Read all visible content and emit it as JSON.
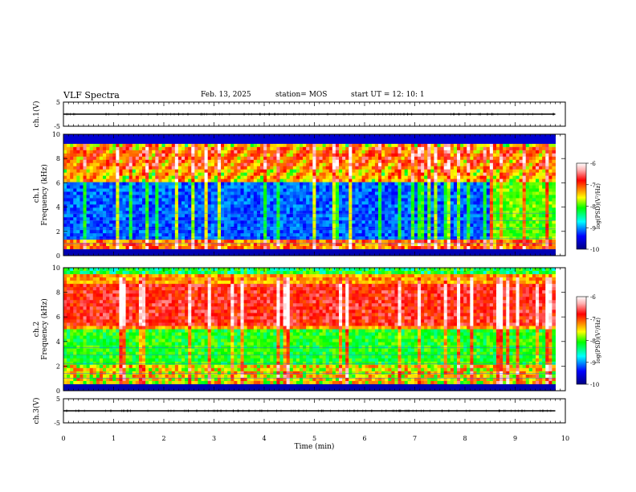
{
  "header": {
    "title": "VLF Spectra",
    "date": "Feb. 13, 2025",
    "station": "station= MOS",
    "start_ut": "start  UT =   12: 10: 1"
  },
  "colors": {
    "background_band": "#000066",
    "colormap": [
      "#000080",
      "#0000ff",
      "#00ffff",
      "#00ff00",
      "#ffff00",
      "#ff8000",
      "#ff0000",
      "#ffb0b0",
      "#ffffff"
    ]
  },
  "chart_data": [
    {
      "type": "line",
      "panel": "ch1-waveform",
      "ylabel": "ch.1(V)",
      "y_ticks": [
        "5",
        "-5"
      ],
      "ylim": [
        -5,
        5
      ],
      "x_ticks": [
        "0",
        "1",
        "2",
        "3",
        "4",
        "5",
        "6",
        "7",
        "8",
        "9",
        "10"
      ],
      "xlim": [
        0,
        10
      ],
      "series": [
        {
          "x": [
            0,
            9.8
          ],
          "values": [
            0,
            0
          ]
        }
      ]
    },
    {
      "type": "heatmap",
      "panel": "ch1-spectrogram",
      "ylabel": "ch.1\nFrequency (kHz)",
      "y_ticks": [
        "0",
        "2",
        "4",
        "6",
        "8",
        "10"
      ],
      "ylim": [
        0,
        10
      ],
      "xlim": [
        0,
        10
      ],
      "data_end_min": 9.8,
      "colorbar": {
        "label": "log(PSD)(V²/Hz)",
        "ticks": [
          "-6",
          "-7",
          "-8",
          "-9",
          "-10"
        ],
        "range": [
          -10,
          -6
        ]
      }
    },
    {
      "type": "heatmap",
      "panel": "ch2-spectrogram",
      "ylabel": "ch.2\nFrequency (kHz)",
      "y_ticks": [
        "0",
        "2",
        "4",
        "6",
        "8",
        "10"
      ],
      "ylim": [
        0,
        10
      ],
      "xlim": [
        0,
        10
      ],
      "data_end_min": 9.8,
      "colorbar": {
        "label": "log(PSD)(V²/Hz)",
        "ticks": [
          "-6",
          "-7",
          "-8",
          "-9",
          "-10"
        ],
        "range": [
          -10,
          -6
        ]
      }
    },
    {
      "type": "line",
      "panel": "ch3-waveform",
      "ylabel": "ch.3(V)",
      "y_ticks": [
        "5",
        "-5"
      ],
      "ylim": [
        -5,
        5
      ],
      "xlabel": "Time (min)",
      "x_ticks": [
        "0",
        "1",
        "2",
        "3",
        "4",
        "5",
        "6",
        "7",
        "8",
        "9",
        "10"
      ],
      "xlim": [
        0,
        10
      ],
      "series": [
        {
          "x": [
            0,
            9.8
          ],
          "values": [
            0,
            0
          ]
        }
      ]
    }
  ]
}
